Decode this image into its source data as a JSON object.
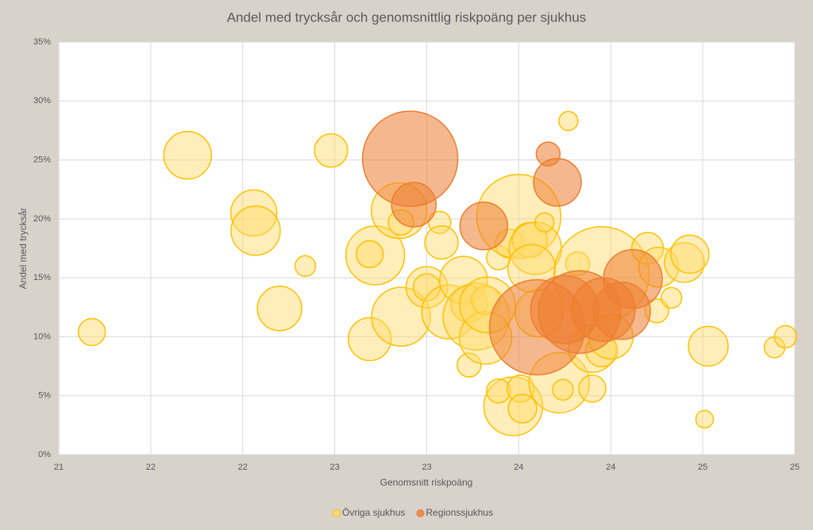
{
  "chart_data": {
    "type": "bubble",
    "title": "Andel med trycksår och genomsnittlig riskpoäng per sjukhus",
    "x_label": "Genomsnitt riskpoäng",
    "y_label": "Andel med trycksår",
    "xlim": [
      21,
      25
    ],
    "xticks": [
      21,
      {
        "value": 21.5,
        "label": "22"
      },
      22,
      {
        "value": 22.5,
        "label": "23"
      },
      23,
      {
        "value": 23.5,
        "label": "24"
      },
      24,
      {
        "value": 24.5,
        "label": "25"
      },
      25
    ],
    "ylim": [
      0,
      35
    ],
    "yticks": [
      {
        "value": 0,
        "label": "0%"
      },
      {
        "value": 5,
        "label": "5%"
      },
      {
        "value": 10,
        "label": "10%"
      },
      {
        "value": 15,
        "label": "15%"
      },
      {
        "value": 20,
        "label": "20%"
      },
      {
        "value": 25,
        "label": "25%"
      },
      {
        "value": 30,
        "label": "30%"
      },
      {
        "value": 35,
        "label": "35%"
      }
    ],
    "grid": true,
    "legend": "bottom",
    "series": [
      {
        "name": "Övriga sjukhus",
        "color": "#ffc000",
        "fill": "#ffd966",
        "x": [
          21.18,
          21.7,
          22.06,
          22.07,
          22.34,
          22.2,
          22.48,
          22.72,
          22.69,
          22.69,
          22.86,
          22.85,
          22.86,
          23.07,
          23.0,
          23.0,
          23.12,
          23.08,
          23.2,
          23.23,
          23.23,
          23.27,
          23.32,
          23.32,
          23.33,
          23.39,
          23.45,
          23.5,
          23.56,
          23.59,
          23.57,
          23.47,
          23.39,
          23.51,
          23.52,
          23.64,
          23.61,
          23.72,
          23.74,
          23.77,
          23.82,
          23.9,
          23.95,
          23.9,
          23.95,
          24.0,
          24.2,
          24.26,
          24.25,
          24.33,
          24.4,
          24.43,
          24.53,
          24.51,
          24.89,
          24.95
        ],
        "values": [
          10.4,
          25.4,
          20.5,
          19.0,
          16.0,
          12.4,
          25.8,
          16.9,
          17.0,
          9.8,
          11.7,
          20.7,
          19.7,
          19.7,
          14.2,
          14.2,
          12.1,
          18.0,
          14.8,
          12.8,
          7.6,
          11.7,
          9.9,
          13.1,
          12.7,
          16.7,
          17.9,
          20.2,
          18.2,
          17.5,
          15.8,
          4.1,
          5.4,
          5.6,
          3.9,
          19.7,
          12.0,
          6.1,
          5.5,
          28.3,
          16.2,
          5.6,
          15.3,
          9.0,
          8.8,
          10.0,
          17.5,
          15.9,
          12.2,
          13.3,
          16.3,
          17.0,
          9.2,
          3.0,
          9.1,
          10.0
        ],
        "sizes": [
          289,
          900,
          841,
          961,
          169,
          784,
          441,
          1369,
          289,
          729,
          1369,
          1225,
          256,
          196,
          676,
          289,
          1156,
          441,
          900,
          529,
          225,
          1764,
          1089,
          324,
          1225,
          225,
          324,
          2809,
          484,
          1089,
          900,
          1369,
          225,
          289,
          324,
          144,
          900,
          1444,
          169,
          144,
          225,
          289,
          3600,
          900,
          400,
          784,
          400,
          625,
          225,
          169,
          625,
          576,
          625,
          121,
          169,
          196
        ]
      },
      {
        "name": "Regionssjukhus",
        "color": "#ed7d31",
        "fill": "#ed7d31",
        "x": [
          22.91,
          22.93,
          23.31,
          23.66,
          23.71,
          23.6,
          23.83,
          23.75,
          23.96,
          24.06,
          24.12
        ],
        "values": [
          25.1,
          21.2,
          19.4,
          25.5,
          23.1,
          10.8,
          12.1,
          12.3,
          12.3,
          12.2,
          14.9
        ],
        "sizes": [
          3600,
          784,
          900,
          225,
          900,
          3600,
          2704,
          1849,
          1600,
          1296,
          1369
        ]
      }
    ]
  }
}
